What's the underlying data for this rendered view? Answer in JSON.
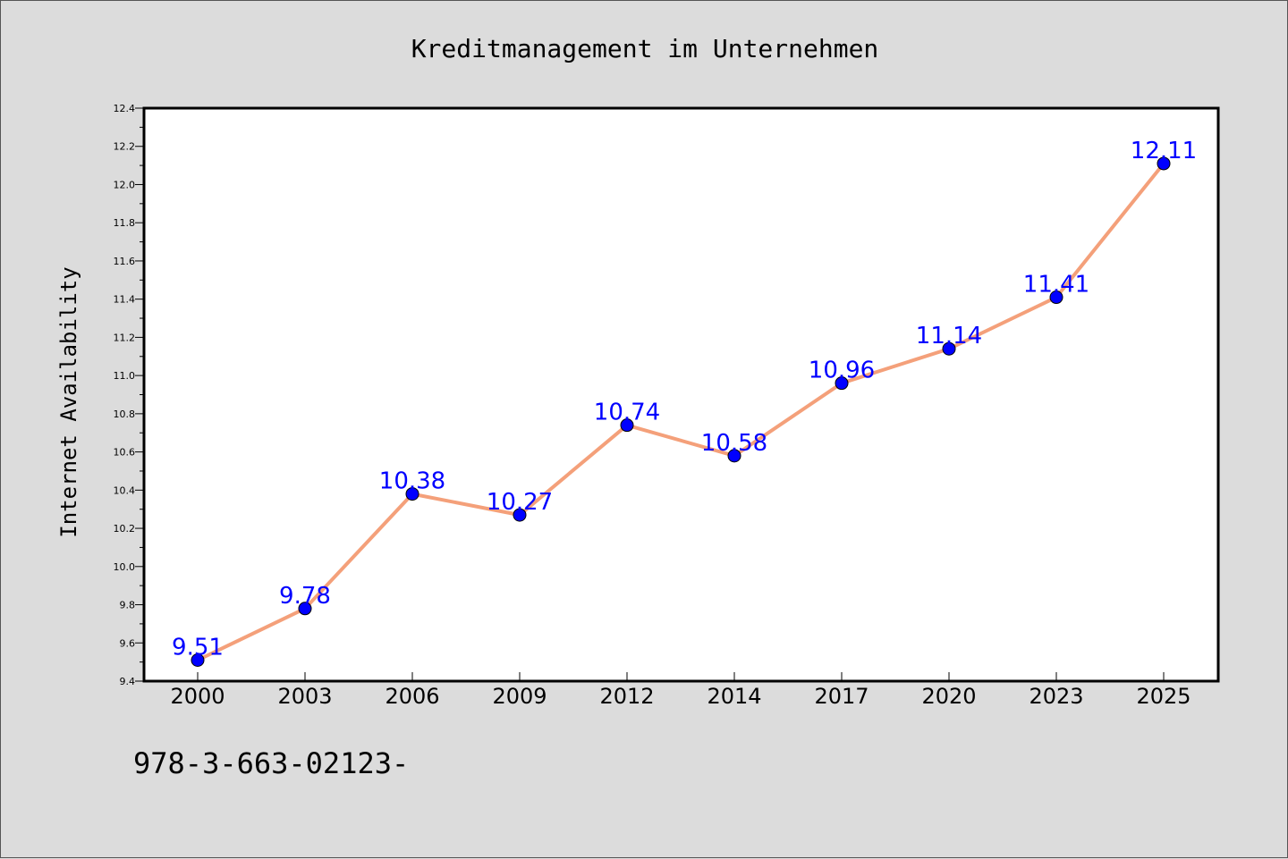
{
  "chart_data": {
    "type": "line",
    "title": "Kreditmanagement im Unternehmen",
    "ylabel": "Internet Availability",
    "xlabel": "",
    "categories": [
      "2000",
      "2003",
      "2006",
      "2009",
      "2012",
      "2014",
      "2017",
      "2020",
      "2023",
      "2025"
    ],
    "series": [
      {
        "values": [
          9.51,
          9.78,
          10.38,
          10.27,
          10.74,
          10.58,
          10.96,
          11.14,
          11.41,
          12.11
        ],
        "data_labels": [
          "9.51",
          "9.78",
          "10.38",
          "10.27",
          "10.74",
          "10.58",
          "10.96",
          "11.14",
          "11.41",
          "12.11"
        ],
        "line_color": "#f4a07a",
        "marker_color": "#0000ff"
      }
    ],
    "ylim": [
      9.4,
      12.4
    ],
    "yticks": [
      "9.4",
      "9.6",
      "9.8",
      "10.0",
      "10.2",
      "10.4",
      "10.6",
      "10.8",
      "11.0",
      "11.2",
      "11.4",
      "11.6",
      "11.8",
      "12.0",
      "12.2",
      "12.4"
    ],
    "grid": false,
    "legend": "none"
  },
  "footer_text": "978-3-663-02123-",
  "colors": {
    "background": "#dcdcdc",
    "plot_background": "#ffffff",
    "line": "#f4a07a",
    "marker": "#0000ff",
    "data_label": "#0000ff"
  }
}
